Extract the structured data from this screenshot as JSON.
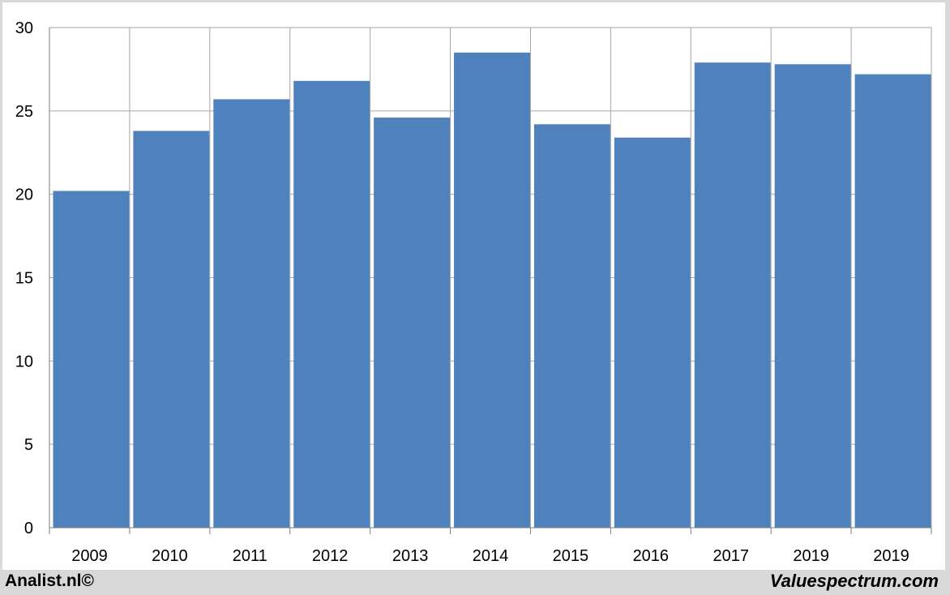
{
  "chart_data": {
    "type": "bar",
    "categories": [
      "2009",
      "2010",
      "2011",
      "2012",
      "2013",
      "2014",
      "2015",
      "2016",
      "2017",
      "2019",
      "2019"
    ],
    "values": [
      20.2,
      23.8,
      25.7,
      26.8,
      24.6,
      28.5,
      24.2,
      23.4,
      27.9,
      27.8,
      27.2
    ],
    "title": "",
    "xlabel": "",
    "ylabel": "",
    "ylim": [
      0,
      30
    ],
    "yticks": [
      0,
      5,
      10,
      15,
      20,
      25,
      30
    ],
    "grid": true,
    "bar_color": "#4f81bd",
    "grid_color": "#a6a6a6"
  },
  "footer": {
    "left_text": "Analist.nl©",
    "right_text": "Valuespectrum.com"
  }
}
